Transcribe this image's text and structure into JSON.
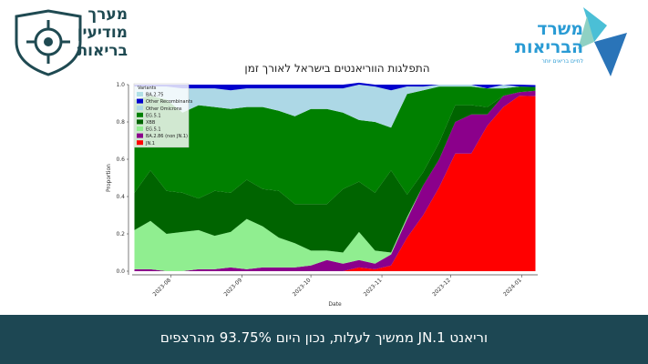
{
  "slide": {
    "left_logo_text": "מערך\nמודיעין\nבריאות",
    "right_logo_text": "משרד\nהבריאות",
    "right_logo_sub": "לחיים בריאים יותר",
    "footer_text": "וריאנט JN.1 ממשיך לעלות, נכון היום 93.75% מהרצפים",
    "colors": {
      "footer_bg": "#1d4753",
      "logo_teal": "#1f4a52",
      "logo_blue": "#2a9bd4"
    }
  },
  "chart_data": {
    "type": "area",
    "stacked": true,
    "title": "התפלגות הווריאנטים בישראל לאורך זמן",
    "xlabel": "Date",
    "ylabel": "Proportion",
    "ylim": [
      0,
      1
    ],
    "yticks": [
      "0.0",
      "0.2",
      "0.4",
      "0.6",
      "0.8",
      "1.0"
    ],
    "xlim": [
      "2023-07-15",
      "2024-01-08"
    ],
    "xticks": [
      "2023-08",
      "2023-09",
      "2023-10",
      "2023-11",
      "2023-12",
      "2024-01"
    ],
    "legend": {
      "title": "Variants",
      "placement": "top-left"
    },
    "x": [
      "2023-07-16",
      "2023-07-23",
      "2023-07-30",
      "2023-08-06",
      "2023-08-13",
      "2023-08-20",
      "2023-08-27",
      "2023-09-03",
      "2023-09-10",
      "2023-09-17",
      "2023-09-24",
      "2023-10-01",
      "2023-10-08",
      "2023-10-15",
      "2023-10-22",
      "2023-10-29",
      "2023-11-05",
      "2023-11-12",
      "2023-11-19",
      "2023-11-26",
      "2023-12-03",
      "2023-12-10",
      "2023-12-17",
      "2023-12-24",
      "2023-12-31",
      "2024-01-07"
    ],
    "series": [
      {
        "name": "JN.1",
        "color": "#ff0000",
        "values": [
          0,
          0,
          0,
          0,
          0,
          0,
          0,
          0,
          0,
          0,
          0,
          0,
          0,
          0,
          0.02,
          0.01,
          0.03,
          0.18,
          0.3,
          0.45,
          0.63,
          0.63,
          0.78,
          0.88,
          0.94,
          0.9375
        ]
      },
      {
        "name": "BA.2.86 (non JN.1)",
        "color": "#8b008b",
        "values": [
          0.01,
          0.01,
          0,
          0,
          0.01,
          0.01,
          0.02,
          0.01,
          0.02,
          0.02,
          0.02,
          0.03,
          0.06,
          0.04,
          0.04,
          0.03,
          0.06,
          0.1,
          0.16,
          0.15,
          0.17,
          0.21,
          0.06,
          0.06,
          0.02,
          0.03
        ]
      },
      {
        "name": "EG.5.1",
        "color": "#90ee90",
        "values": [
          0.21,
          0.26,
          0.2,
          0.21,
          0.21,
          0.18,
          0.19,
          0.27,
          0.22,
          0.16,
          0.13,
          0.08,
          0.05,
          0.06,
          0.15,
          0.07,
          0.01,
          0.01,
          0,
          0,
          0,
          0,
          0,
          0,
          0,
          0
        ]
      },
      {
        "name": "XBB",
        "color": "#006400",
        "values": [
          0.2,
          0.27,
          0.23,
          0.21,
          0.17,
          0.24,
          0.21,
          0.21,
          0.2,
          0.25,
          0.21,
          0.25,
          0.25,
          0.34,
          0.27,
          0.31,
          0.44,
          0.12,
          0.07,
          0.09,
          0.09,
          0.05,
          0.04,
          0,
          0,
          0
        ]
      },
      {
        "name": "EG.5.1",
        "color": "#008000",
        "values": [
          0.5,
          0.4,
          0.49,
          0.43,
          0.5,
          0.45,
          0.45,
          0.39,
          0.44,
          0.43,
          0.47,
          0.51,
          0.51,
          0.41,
          0.33,
          0.38,
          0.23,
          0.54,
          0.44,
          0.3,
          0.1,
          0.1,
          0.1,
          0.04,
          0.03,
          0.02
        ]
      },
      {
        "name": "Other Omicrons",
        "color": "#add8e6",
        "values": [
          0.07,
          0.05,
          0.07,
          0.13,
          0.09,
          0.1,
          0.1,
          0.1,
          0.1,
          0.12,
          0.15,
          0.11,
          0.11,
          0.13,
          0.19,
          0.19,
          0.2,
          0.04,
          0.02,
          0.01,
          0.01,
          0.01,
          0,
          0.02,
          0,
          0
        ]
      },
      {
        "name": "Other Recombinants",
        "color": "#0000cd",
        "values": [
          0.01,
          0.01,
          0.01,
          0.02,
          0.02,
          0.02,
          0.03,
          0.02,
          0.02,
          0.02,
          0.02,
          0.02,
          0.02,
          0.02,
          0.01,
          0.01,
          0.03,
          0.01,
          0.01,
          0,
          0,
          0,
          0.02,
          0,
          0.01,
          0.01
        ]
      },
      {
        "name": "BA.2.75",
        "color": "#b0e0e6",
        "values": [
          0,
          0,
          0,
          0,
          0,
          0,
          0,
          0,
          0,
          0,
          0,
          0,
          0,
          0,
          0,
          0,
          0,
          0,
          0,
          0,
          0,
          0,
          0,
          0,
          0,
          0
        ]
      }
    ],
    "legend_order": [
      7,
      6,
      5,
      4,
      3,
      2,
      1,
      0
    ]
  }
}
